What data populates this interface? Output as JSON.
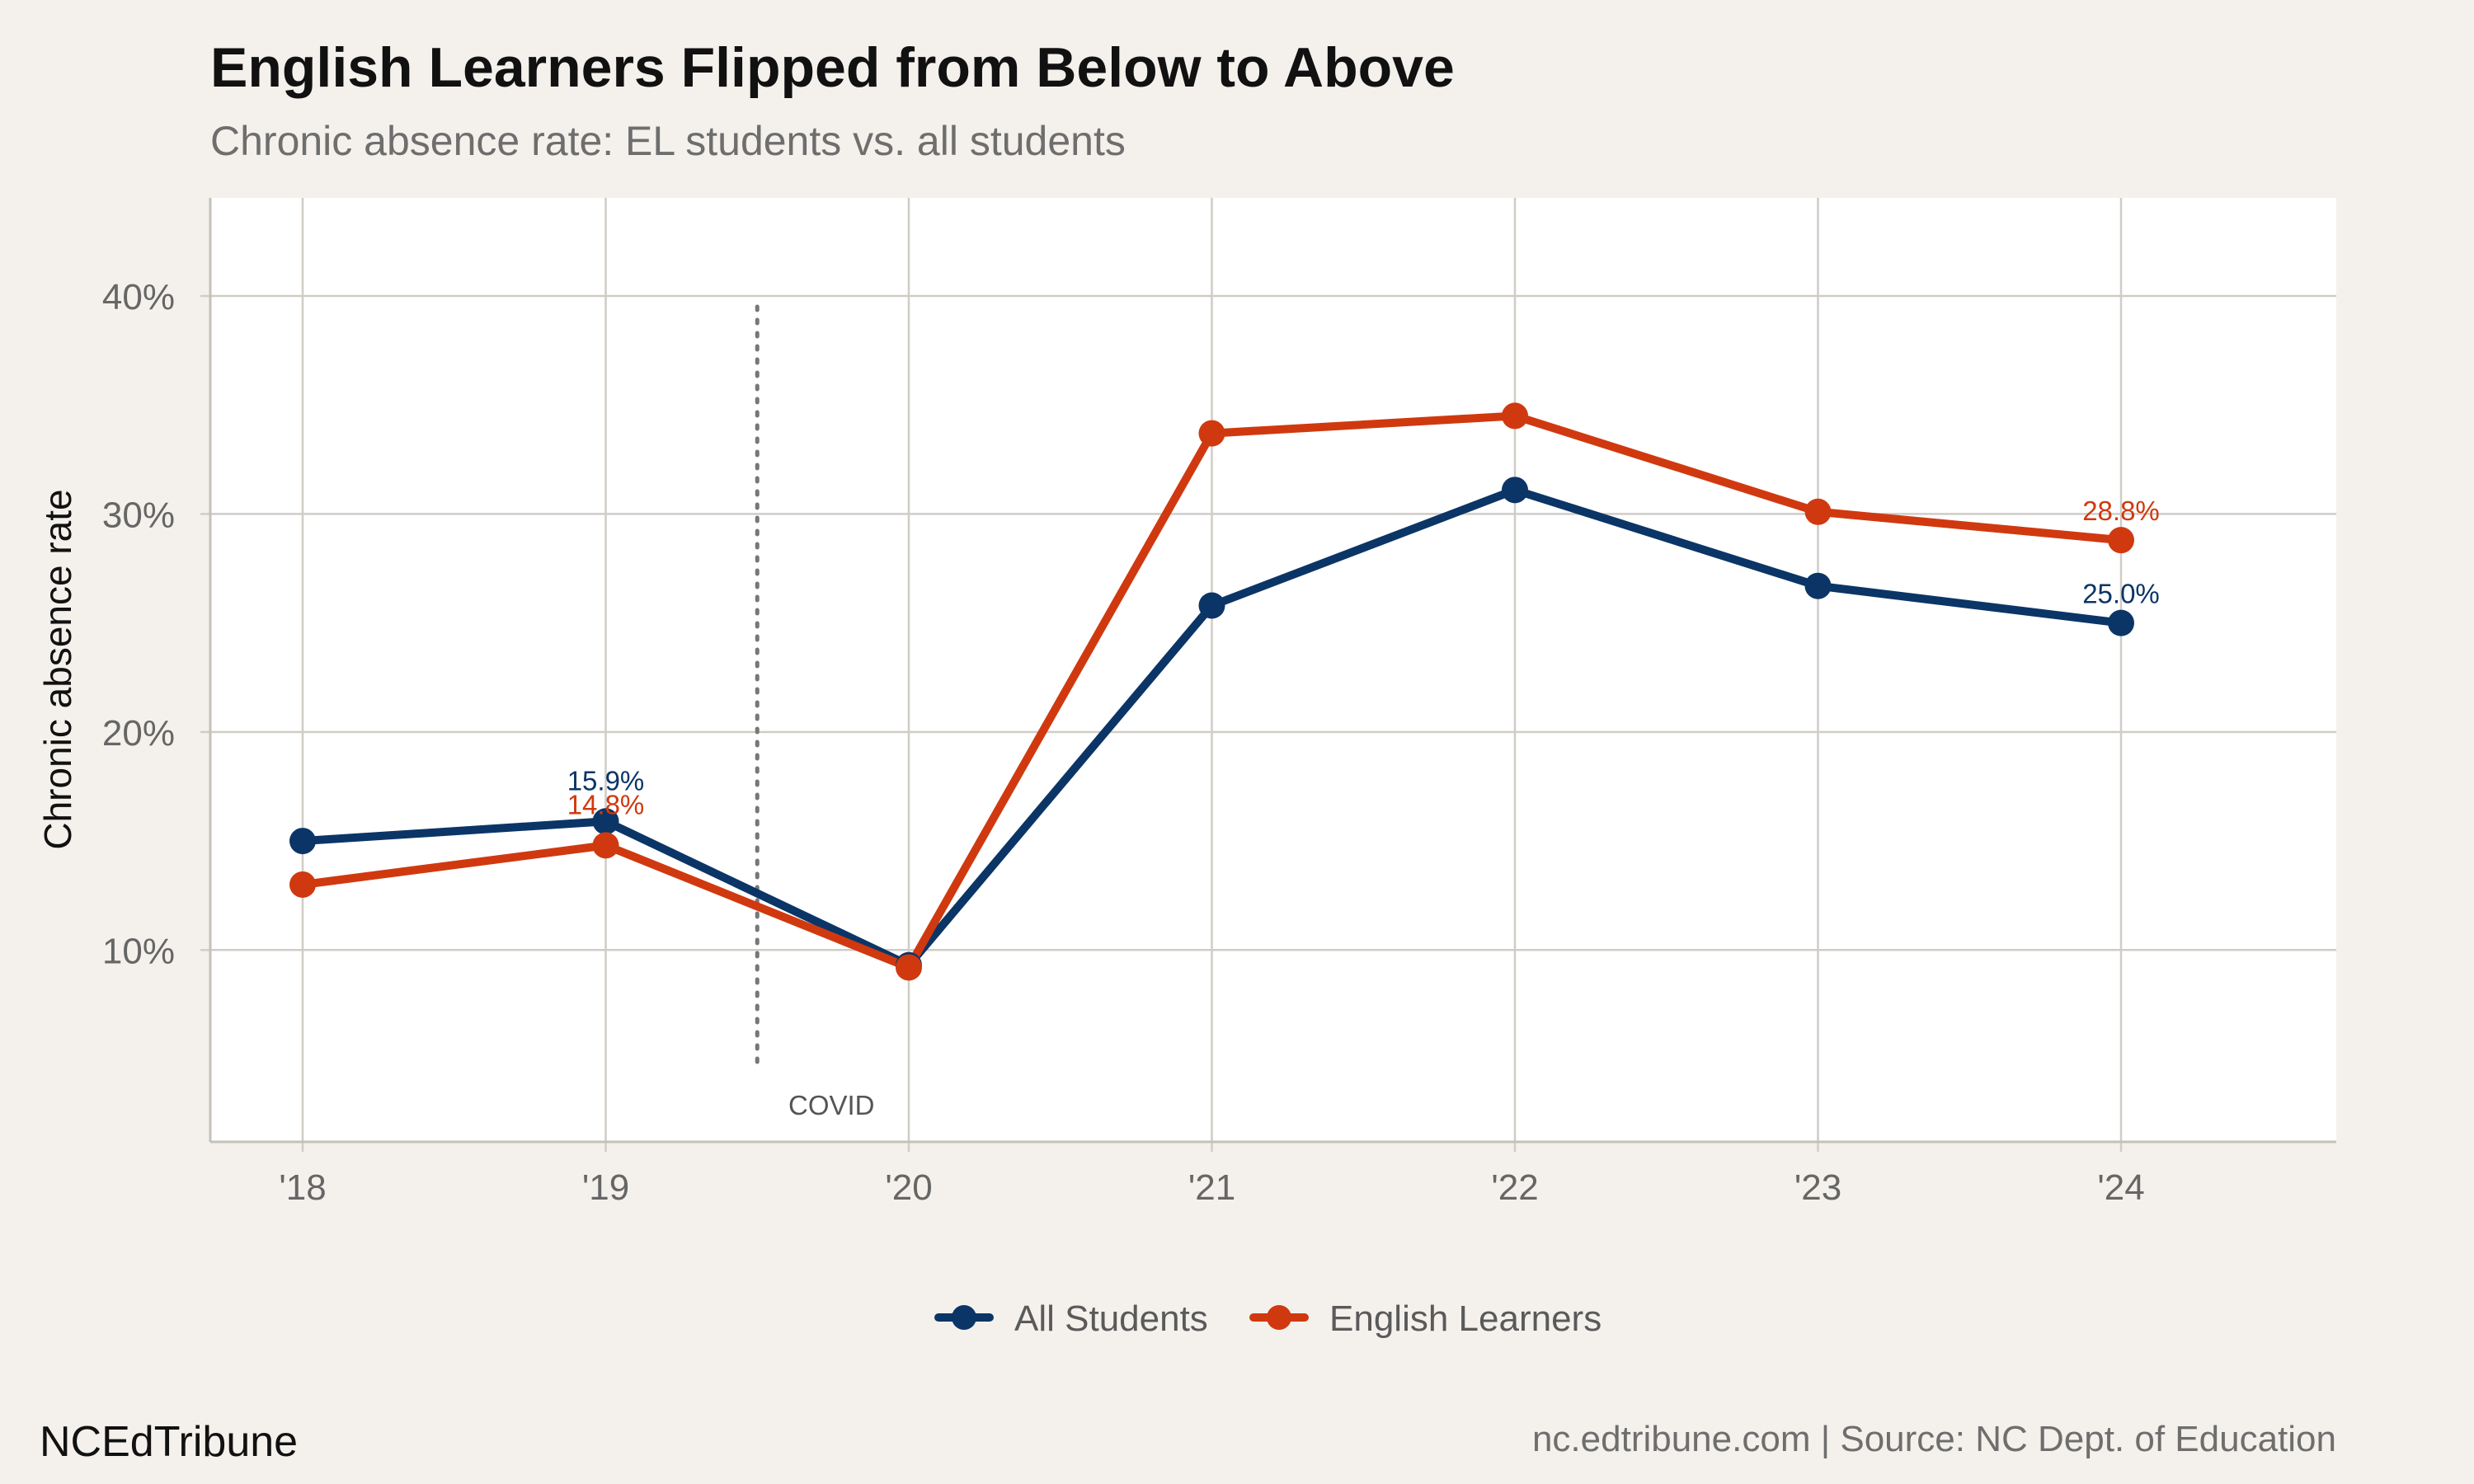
{
  "header": {
    "title": "English Learners Flipped from Below to Above",
    "subtitle": "Chronic absence rate: EL students vs. all students"
  },
  "footer": {
    "brand": "NCEdTribune",
    "source": "nc.edtribune.com | Source: NC Dept. of Education"
  },
  "colors": {
    "background": "#f4f1ec",
    "panel": "#ffffff",
    "grid": "#d0ccc6",
    "all_students": "#0b3566",
    "english_learners": "#d0390f",
    "covid_line": "#777777"
  },
  "chart_data": {
    "type": "line",
    "title": "English Learners Flipped from Below to Above",
    "subtitle": "Chronic absence rate: EL students vs. all students",
    "xlabel": "",
    "ylabel": "Chronic absence rate",
    "categories": [
      "'18",
      "'19",
      "'20",
      "'21",
      "'22",
      "'23",
      "'24"
    ],
    "x_range": [
      "'18",
      "'24"
    ],
    "ylim": [
      0.012,
      0.445
    ],
    "y_ticks": [
      0.1,
      0.2,
      0.3,
      0.4
    ],
    "y_tick_labels": [
      "10%",
      "20%",
      "30%",
      "40%"
    ],
    "grid": true,
    "legend_position": "bottom",
    "series": [
      {
        "name": "All Students",
        "color": "#0b3566",
        "values": [
          0.15,
          0.159,
          0.093,
          0.258,
          0.311,
          0.267,
          0.25
        ]
      },
      {
        "name": "English Learners",
        "color": "#d0390f",
        "values": [
          0.13,
          0.148,
          0.092,
          0.337,
          0.345,
          0.301,
          0.288
        ]
      }
    ],
    "data_labels": [
      {
        "series": "All Students",
        "category": "'19",
        "text": "15.9%"
      },
      {
        "series": "English Learners",
        "category": "'19",
        "text": "14.8%"
      },
      {
        "series": "English Learners",
        "category": "'24",
        "text": "28.8%"
      },
      {
        "series": "All Students",
        "category": "'24",
        "text": "25.0%"
      }
    ],
    "annotations": [
      {
        "type": "vline",
        "position_between": [
          "'19",
          "'20"
        ],
        "label": "COVID",
        "style": "dotted"
      }
    ]
  }
}
